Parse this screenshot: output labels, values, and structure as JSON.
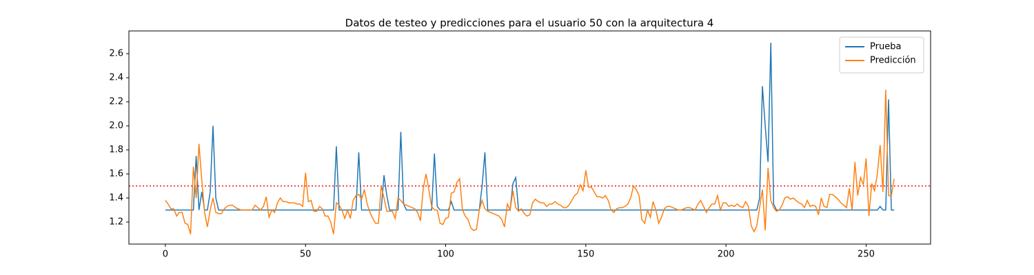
{
  "chart_data": {
    "type": "line",
    "title": "Datos de testeo y predicciones para el usuario 50 con la arquitectura 4",
    "x": [
      0,
      1,
      2,
      3,
      4,
      5,
      6,
      7,
      8,
      9,
      10,
      11,
      12,
      13,
      14,
      15,
      16,
      17,
      18,
      19,
      20,
      21,
      22,
      23,
      24,
      25,
      26,
      27,
      28,
      29,
      30,
      31,
      32,
      33,
      34,
      35,
      36,
      37,
      38,
      39,
      40,
      41,
      42,
      43,
      44,
      45,
      46,
      47,
      48,
      49,
      50,
      51,
      52,
      53,
      54,
      55,
      56,
      57,
      58,
      59,
      60,
      61,
      62,
      63,
      64,
      65,
      66,
      67,
      68,
      69,
      70,
      71,
      72,
      73,
      74,
      75,
      76,
      77,
      78,
      79,
      80,
      81,
      82,
      83,
      84,
      85,
      86,
      87,
      88,
      89,
      90,
      91,
      92,
      93,
      94,
      95,
      96,
      97,
      98,
      99,
      100,
      101,
      102,
      103,
      104,
      105,
      106,
      107,
      108,
      109,
      110,
      111,
      112,
      113,
      114,
      115,
      116,
      117,
      118,
      119,
      120,
      121,
      122,
      123,
      124,
      125,
      126,
      127,
      128,
      129,
      130,
      131,
      132,
      133,
      134,
      135,
      136,
      137,
      138,
      139,
      140,
      141,
      142,
      143,
      144,
      145,
      146,
      147,
      148,
      149,
      150,
      151,
      152,
      153,
      154,
      155,
      156,
      157,
      158,
      159,
      160,
      161,
      162,
      163,
      164,
      165,
      166,
      167,
      168,
      169,
      170,
      171,
      172,
      173,
      174,
      175,
      176,
      177,
      178,
      179,
      180,
      181,
      182,
      183,
      184,
      185,
      186,
      187,
      188,
      189,
      190,
      191,
      192,
      193,
      194,
      195,
      196,
      197,
      198,
      199,
      200,
      201,
      202,
      203,
      204,
      205,
      206,
      207,
      208,
      209,
      210,
      211,
      212,
      213,
      214,
      215,
      216,
      217,
      218,
      219,
      220,
      221,
      222,
      223,
      224,
      225,
      226,
      227,
      228,
      229,
      230,
      231,
      232,
      233,
      234,
      235,
      236,
      237,
      238,
      239,
      240,
      241,
      242,
      243,
      244,
      245,
      246,
      247,
      248,
      249,
      250,
      251,
      252,
      253,
      254,
      255,
      256,
      257,
      258,
      259,
      260
    ],
    "series": [
      {
        "name": "Prueba",
        "color": "#1f77b4",
        "values": [
          1.3,
          1.3,
          1.3,
          1.3,
          1.3,
          1.3,
          1.3,
          1.3,
          1.3,
          1.3,
          1.3,
          1.75,
          1.3,
          1.45,
          1.3,
          1.3,
          1.45,
          2.0,
          1.4,
          1.3,
          1.3,
          1.3,
          1.3,
          1.3,
          1.3,
          1.3,
          1.3,
          1.3,
          1.3,
          1.3,
          1.3,
          1.3,
          1.3,
          1.3,
          1.3,
          1.3,
          1.3,
          1.3,
          1.3,
          1.3,
          1.3,
          1.3,
          1.3,
          1.3,
          1.3,
          1.3,
          1.3,
          1.3,
          1.3,
          1.3,
          1.3,
          1.3,
          1.3,
          1.3,
          1.3,
          1.3,
          1.3,
          1.3,
          1.3,
          1.3,
          1.3,
          1.83,
          1.3,
          1.3,
          1.3,
          1.3,
          1.3,
          1.3,
          1.3,
          1.78,
          1.3,
          1.3,
          1.3,
          1.3,
          1.3,
          1.3,
          1.3,
          1.3,
          1.59,
          1.42,
          1.3,
          1.3,
          1.3,
          1.3,
          1.95,
          1.35,
          1.3,
          1.3,
          1.3,
          1.3,
          1.3,
          1.3,
          1.3,
          1.3,
          1.3,
          1.3,
          1.77,
          1.33,
          1.3,
          1.3,
          1.3,
          1.3,
          1.37,
          1.3,
          1.3,
          1.3,
          1.3,
          1.3,
          1.3,
          1.3,
          1.3,
          1.3,
          1.3,
          1.5,
          1.78,
          1.3,
          1.3,
          1.3,
          1.3,
          1.3,
          1.3,
          1.3,
          1.3,
          1.3,
          1.52,
          1.57,
          1.3,
          1.3,
          1.3,
          1.3,
          1.3,
          1.3,
          1.3,
          1.3,
          1.3,
          1.3,
          1.3,
          1.3,
          1.3,
          1.3,
          1.3,
          1.3,
          1.3,
          1.3,
          1.3,
          1.3,
          1.3,
          1.3,
          1.3,
          1.3,
          1.3,
          1.3,
          1.3,
          1.3,
          1.3,
          1.3,
          1.3,
          1.3,
          1.3,
          1.3,
          1.3,
          1.3,
          1.3,
          1.3,
          1.3,
          1.3,
          1.3,
          1.3,
          1.3,
          1.3,
          1.3,
          1.3,
          1.3,
          1.3,
          1.3,
          1.3,
          1.3,
          1.3,
          1.3,
          1.3,
          1.3,
          1.3,
          1.3,
          1.3,
          1.3,
          1.3,
          1.3,
          1.3,
          1.3,
          1.3,
          1.3,
          1.3,
          1.3,
          1.3,
          1.3,
          1.3,
          1.3,
          1.3,
          1.3,
          1.3,
          1.3,
          1.3,
          1.3,
          1.3,
          1.3,
          1.3,
          1.3,
          1.3,
          1.3,
          1.3,
          1.3,
          1.3,
          1.4,
          2.33,
          2.0,
          1.7,
          2.69,
          1.35,
          1.3,
          1.3,
          1.3,
          1.3,
          1.3,
          1.3,
          1.3,
          1.3,
          1.3,
          1.3,
          1.3,
          1.3,
          1.3,
          1.3,
          1.3,
          1.3,
          1.3,
          1.3,
          1.3,
          1.3,
          1.3,
          1.3,
          1.3,
          1.3,
          1.3,
          1.3,
          1.3,
          1.3,
          1.3,
          1.3,
          1.3,
          1.3,
          1.3,
          1.3,
          1.3,
          1.3,
          1.3,
          1.33,
          1.3,
          1.3,
          2.22,
          1.3,
          1.3
        ]
      },
      {
        "name": "Predicción",
        "color": "#ff7f0e",
        "values": [
          1.38,
          1.35,
          1.31,
          1.31,
          1.25,
          1.28,
          1.28,
          1.19,
          1.18,
          1.1,
          1.66,
          1.4,
          1.85,
          1.55,
          1.28,
          1.16,
          1.3,
          1.4,
          1.28,
          1.27,
          1.27,
          1.31,
          1.33,
          1.34,
          1.34,
          1.32,
          1.31,
          1.3,
          1.3,
          1.3,
          1.3,
          1.3,
          1.34,
          1.32,
          1.3,
          1.33,
          1.41,
          1.24,
          1.3,
          1.28,
          1.36,
          1.4,
          1.37,
          1.37,
          1.36,
          1.36,
          1.36,
          1.35,
          1.35,
          1.33,
          1.61,
          1.37,
          1.38,
          1.29,
          1.29,
          1.33,
          1.31,
          1.25,
          1.25,
          1.2,
          1.1,
          1.36,
          1.34,
          1.3,
          1.23,
          1.3,
          1.23,
          1.38,
          1.42,
          1.43,
          1.39,
          1.47,
          1.35,
          1.28,
          1.23,
          1.19,
          1.19,
          1.5,
          1.4,
          1.29,
          1.29,
          1.29,
          1.23,
          1.4,
          1.38,
          1.35,
          1.34,
          1.33,
          1.32,
          1.31,
          1.28,
          1.21,
          1.48,
          1.6,
          1.47,
          1.33,
          1.3,
          1.3,
          1.19,
          1.18,
          1.23,
          1.24,
          1.44,
          1.45,
          1.53,
          1.56,
          1.3,
          1.25,
          1.22,
          1.15,
          1.13,
          1.14,
          1.3,
          1.38,
          1.31,
          1.29,
          1.28,
          1.27,
          1.26,
          1.25,
          1.22,
          1.16,
          1.35,
          1.3,
          1.46,
          1.32,
          1.29,
          1.31,
          1.27,
          1.25,
          1.26,
          1.36,
          1.39,
          1.37,
          1.36,
          1.36,
          1.33,
          1.35,
          1.35,
          1.37,
          1.35,
          1.34,
          1.32,
          1.32,
          1.34,
          1.38,
          1.42,
          1.44,
          1.51,
          1.46,
          1.63,
          1.49,
          1.49,
          1.45,
          1.41,
          1.41,
          1.4,
          1.42,
          1.38,
          1.3,
          1.28,
          1.31,
          1.32,
          1.32,
          1.33,
          1.35,
          1.4,
          1.5,
          1.47,
          1.42,
          1.22,
          1.19,
          1.3,
          1.24,
          1.37,
          1.3,
          1.19,
          1.24,
          1.31,
          1.33,
          1.33,
          1.32,
          1.31,
          1.3,
          1.3,
          1.31,
          1.32,
          1.32,
          1.31,
          1.3,
          1.35,
          1.38,
          1.33,
          1.28,
          1.32,
          1.35,
          1.35,
          1.42,
          1.3,
          1.36,
          1.36,
          1.33,
          1.34,
          1.33,
          1.35,
          1.33,
          1.32,
          1.37,
          1.33,
          1.17,
          1.12,
          1.17,
          1.32,
          1.47,
          1.13,
          1.65,
          1.38,
          1.32,
          1.29,
          1.3,
          1.34,
          1.4,
          1.41,
          1.39,
          1.4,
          1.38,
          1.36,
          1.35,
          1.32,
          1.38,
          1.33,
          1.34,
          1.33,
          1.26,
          1.4,
          1.33,
          1.32,
          1.43,
          1.43,
          1.41,
          1.39,
          1.36,
          1.34,
          1.32,
          1.48,
          1.3,
          1.7,
          1.42,
          1.57,
          1.51,
          1.73,
          1.25,
          1.52,
          1.46,
          1.6,
          1.84,
          1.45,
          2.3,
          1.42,
          1.42,
          1.56
        ]
      }
    ],
    "hline": 1.5,
    "hline_color": "#ff0000",
    "xlim": [
      -13,
      273
    ],
    "xticks": [
      0,
      50,
      100,
      150,
      200,
      250
    ],
    "ylim": [
      1.017,
      2.789
    ],
    "yticks": [
      1.2,
      1.4,
      1.6,
      1.8,
      {
        "value": 2,
        "label": "2.0"
      },
      2.2,
      2.4,
      2.6
    ],
    "legend": "upper right"
  }
}
